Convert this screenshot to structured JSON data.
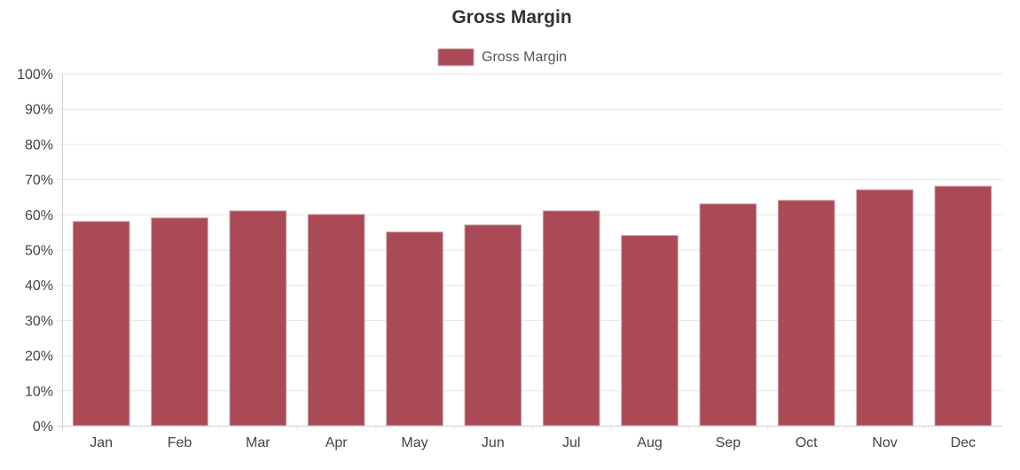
{
  "chart_data": {
    "type": "bar",
    "title": "Gross Margin",
    "xlabel": "",
    "ylabel": "",
    "categories": [
      "Jan",
      "Feb",
      "Mar",
      "Apr",
      "May",
      "Jun",
      "Jul",
      "Aug",
      "Sep",
      "Oct",
      "Nov",
      "Dec"
    ],
    "series": [
      {
        "name": "Gross Margin",
        "values": [
          58,
          59,
          61,
          60,
          55,
          57,
          61,
          54,
          63,
          64,
          67,
          68
        ],
        "color": "#a94a56",
        "border_color": "#c9a0a6"
      }
    ],
    "ylim": [
      0,
      100
    ],
    "y_ticks": [
      "0%",
      "10%",
      "20%",
      "30%",
      "40%",
      "50%",
      "60%",
      "70%",
      "80%",
      "90%",
      "100%"
    ],
    "grid": true,
    "legend_position": "top-center"
  }
}
